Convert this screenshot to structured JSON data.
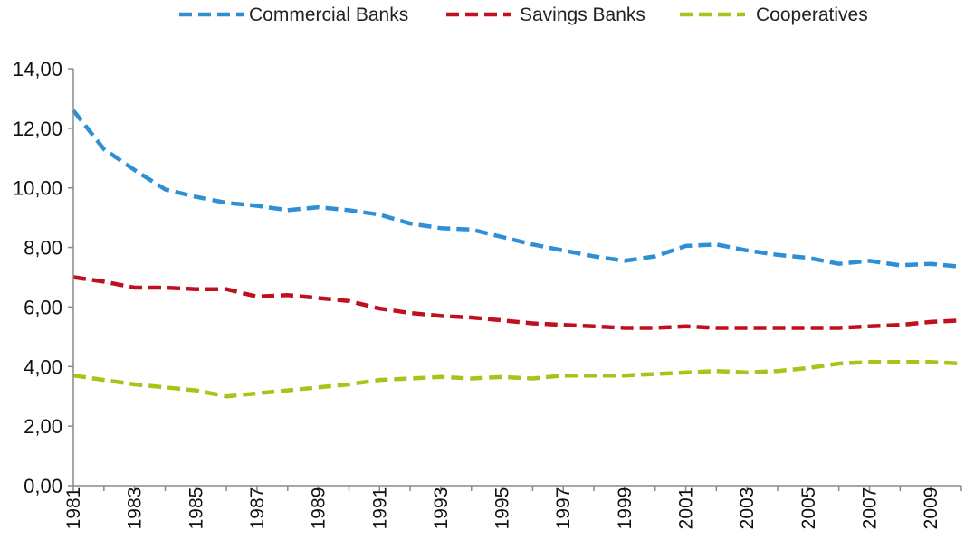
{
  "chart_data": {
    "type": "line",
    "title": "",
    "xlabel": "",
    "ylabel": "",
    "x": [
      1981,
      1982,
      1983,
      1984,
      1985,
      1986,
      1987,
      1988,
      1989,
      1990,
      1991,
      1992,
      1993,
      1994,
      1995,
      1996,
      1997,
      1998,
      1999,
      2000,
      2001,
      2002,
      2003,
      2004,
      2005,
      2006,
      2007,
      2008,
      2009,
      2010
    ],
    "x_tick_labels": [
      "1981",
      "1983",
      "1985",
      "1987",
      "1989",
      "1991",
      "1993",
      "1995",
      "1997",
      "1999",
      "2001",
      "2003",
      "2005",
      "2007",
      "2009"
    ],
    "ylim": [
      0,
      14
    ],
    "y_tick_labels": [
      "0,00",
      "2,00",
      "4,00",
      "6,00",
      "8,00",
      "10,00",
      "12,00",
      "14,00"
    ],
    "grid": false,
    "legend_position": "top-center",
    "series": [
      {
        "name": "Commercial Banks",
        "color": "#2E8FD5",
        "style": "dashed",
        "values": [
          12.6,
          11.3,
          10.6,
          9.95,
          9.7,
          9.5,
          9.4,
          9.25,
          9.35,
          9.25,
          9.1,
          8.8,
          8.65,
          8.6,
          8.35,
          8.1,
          7.9,
          7.7,
          7.55,
          7.7,
          8.05,
          8.1,
          7.9,
          7.75,
          7.65,
          7.45,
          7.55,
          7.4,
          7.45,
          7.35
        ]
      },
      {
        "name": "Savings Banks",
        "color": "#C0101F",
        "style": "dashed",
        "values": [
          7.0,
          6.85,
          6.65,
          6.65,
          6.6,
          6.6,
          6.35,
          6.4,
          6.3,
          6.2,
          5.95,
          5.8,
          5.7,
          5.65,
          5.55,
          5.45,
          5.4,
          5.35,
          5.3,
          5.3,
          5.35,
          5.3,
          5.3,
          5.3,
          5.3,
          5.3,
          5.35,
          5.4,
          5.5,
          5.55
        ]
      },
      {
        "name": "Cooperatives",
        "color": "#A8C41A",
        "style": "dashed",
        "values": [
          3.7,
          3.55,
          3.4,
          3.3,
          3.2,
          3.0,
          3.1,
          3.2,
          3.3,
          3.4,
          3.55,
          3.6,
          3.65,
          3.6,
          3.65,
          3.6,
          3.7,
          3.7,
          3.7,
          3.75,
          3.8,
          3.85,
          3.8,
          3.85,
          3.95,
          4.1,
          4.15,
          4.15,
          4.15,
          4.1
        ]
      }
    ]
  }
}
